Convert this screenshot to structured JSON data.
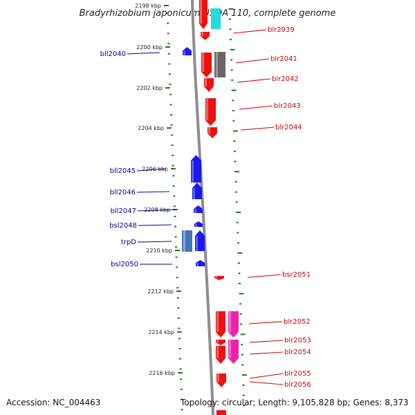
{
  "title": "Bradyrhizobium japonicum USDA 110, complete genome",
  "accession": "Accession: NC_004463",
  "summary": "Topology: circular; Length: 9,105,828 bp; Genes: 8,373",
  "colors": {
    "forward_label": "#cc0000",
    "reverse_label": "#00009a",
    "forward_gene": "#ee1111",
    "reverse_gene": "#1a1aee",
    "tick": "#1a7a1a",
    "backbone": "#8c8c8c"
  },
  "ticks": [
    {
      "label": "2198 kbp"
    },
    {
      "label": "2200 kbp"
    },
    {
      "label": "2202 kbp"
    },
    {
      "label": "2204 kbp"
    },
    {
      "label": "2206 kbp"
    },
    {
      "label": "2208 kbp"
    },
    {
      "label": "2210 kbp"
    },
    {
      "label": "2212 kbp"
    },
    {
      "label": "2214 kbp"
    },
    {
      "label": "2216 kbp"
    }
  ],
  "reverse_genes": [
    {
      "name": "bll2040"
    },
    {
      "name": "bll2045"
    },
    {
      "name": "bll2046"
    },
    {
      "name": "bll2047"
    },
    {
      "name": "bsl2048"
    },
    {
      "name": "trpD"
    },
    {
      "name": "bsl2050"
    }
  ],
  "forward_genes": [
    {
      "name": "blr2039"
    },
    {
      "name": "blr2041"
    },
    {
      "name": "blr2042"
    },
    {
      "name": "blr2043"
    },
    {
      "name": "blr2044"
    },
    {
      "name": "bsr2051"
    },
    {
      "name": "blr2052"
    },
    {
      "name": "blr2053"
    },
    {
      "name": "blr2054"
    },
    {
      "name": "blr2055"
    },
    {
      "name": "blr2056"
    }
  ]
}
